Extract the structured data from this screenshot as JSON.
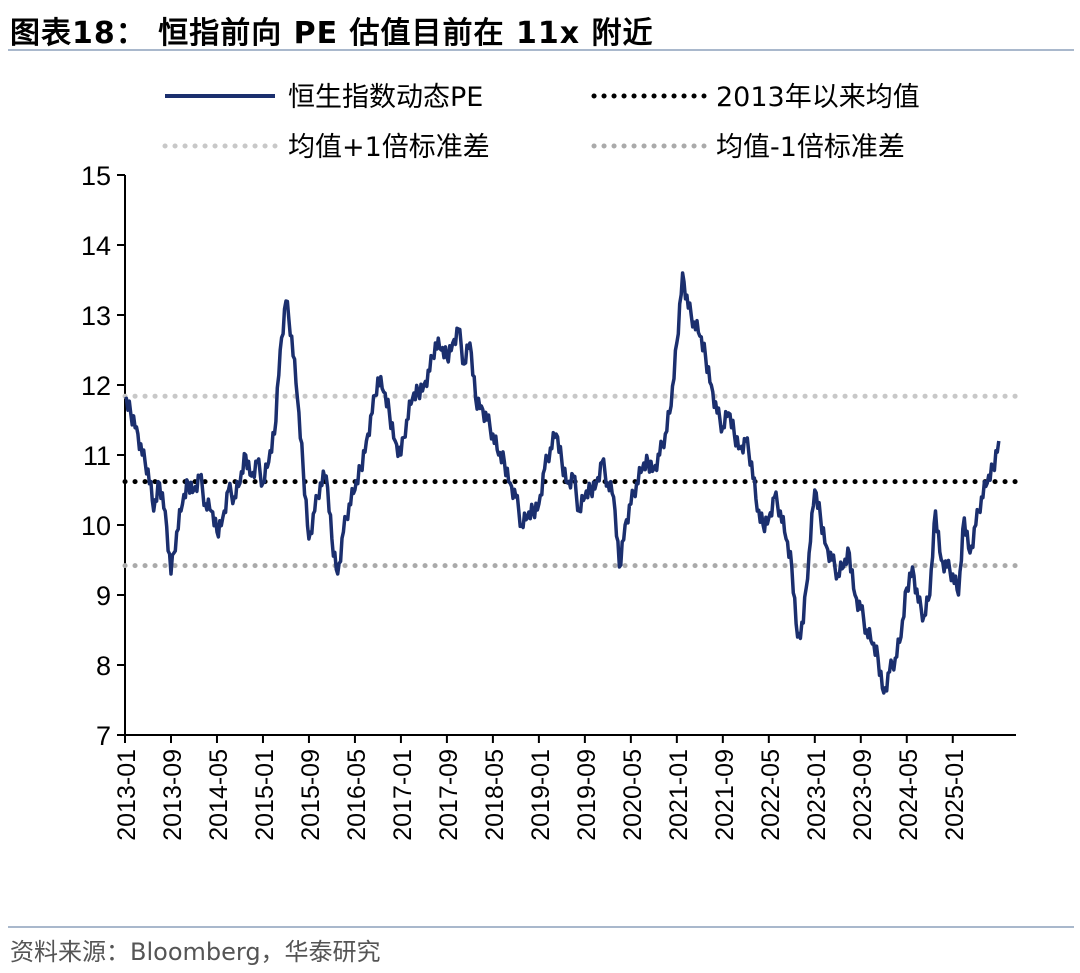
{
  "header": {
    "title": "图表18：  恒指前向 PE 估值目前在 11x 附近"
  },
  "footer": {
    "source": "资料来源：Bloomberg，华泰研究"
  },
  "colors": {
    "series": "#1b2f6e",
    "mean": "#000000",
    "band": "#b5b5b5",
    "rule": "#a9b8cc"
  },
  "chart_data": {
    "type": "line",
    "title": "",
    "xlabel": "",
    "ylabel": "",
    "ylim": [
      7,
      15
    ],
    "yticks": [
      7,
      8,
      9,
      10,
      11,
      12,
      13,
      14,
      15
    ],
    "xlim": [
      "2013-01",
      "2025-12"
    ],
    "xticks": [
      "2013-01",
      "2013-09",
      "2014-05",
      "2015-01",
      "2015-09",
      "2016-05",
      "2017-01",
      "2017-09",
      "2018-05",
      "2019-01",
      "2019-09",
      "2020-05",
      "2021-01",
      "2021-09",
      "2022-05",
      "2023-01",
      "2023-09",
      "2024-05",
      "2025-01"
    ],
    "grid": false,
    "legend_position": "top",
    "legend": [
      {
        "label": "恒生指数动态PE",
        "style": "solid",
        "color": "#1b2f6e"
      },
      {
        "label": "2013年以来均值",
        "style": "dotted",
        "color": "#000000"
      },
      {
        "label": "均值+1倍标准差",
        "style": "dotted",
        "color": "#c8c8c8"
      },
      {
        "label": "均值-1倍标准差",
        "style": "dotted",
        "color": "#aaaaaa"
      }
    ],
    "series": [
      {
        "name": "恒生指数动态PE",
        "x": [
          "2013-01",
          "2013-02",
          "2013-03",
          "2013-04",
          "2013-05",
          "2013-06",
          "2013-07",
          "2013-08",
          "2013-09",
          "2013-10",
          "2013-11",
          "2013-12",
          "2014-01",
          "2014-02",
          "2014-03",
          "2014-04",
          "2014-05",
          "2014-06",
          "2014-07",
          "2014-08",
          "2014-09",
          "2014-10",
          "2014-11",
          "2014-12",
          "2015-01",
          "2015-02",
          "2015-03",
          "2015-04",
          "2015-05",
          "2015-06",
          "2015-07",
          "2015-08",
          "2015-09",
          "2015-10",
          "2015-11",
          "2015-12",
          "2016-01",
          "2016-02",
          "2016-03",
          "2016-04",
          "2016-05",
          "2016-06",
          "2016-07",
          "2016-08",
          "2016-09",
          "2016-10",
          "2016-11",
          "2016-12",
          "2017-01",
          "2017-02",
          "2017-03",
          "2017-04",
          "2017-05",
          "2017-06",
          "2017-07",
          "2017-08",
          "2017-09",
          "2017-10",
          "2017-11",
          "2017-12",
          "2018-01",
          "2018-02",
          "2018-03",
          "2018-04",
          "2018-05",
          "2018-06",
          "2018-07",
          "2018-08",
          "2018-09",
          "2018-10",
          "2018-11",
          "2018-12",
          "2019-01",
          "2019-02",
          "2019-03",
          "2019-04",
          "2019-05",
          "2019-06",
          "2019-07",
          "2019-08",
          "2019-09",
          "2019-10",
          "2019-11",
          "2019-12",
          "2020-01",
          "2020-02",
          "2020-03",
          "2020-04",
          "2020-05",
          "2020-06",
          "2020-07",
          "2020-08",
          "2020-09",
          "2020-10",
          "2020-11",
          "2020-12",
          "2021-01",
          "2021-02",
          "2021-03",
          "2021-04",
          "2021-05",
          "2021-06",
          "2021-07",
          "2021-08",
          "2021-09",
          "2021-10",
          "2021-11",
          "2021-12",
          "2022-01",
          "2022-02",
          "2022-03",
          "2022-04",
          "2022-05",
          "2022-06",
          "2022-07",
          "2022-08",
          "2022-09",
          "2022-10",
          "2022-11",
          "2022-12",
          "2023-01",
          "2023-02",
          "2023-03",
          "2023-04",
          "2023-05",
          "2023-06",
          "2023-07",
          "2023-08",
          "2023-09",
          "2023-10",
          "2023-11",
          "2023-12",
          "2024-01",
          "2024-02",
          "2024-03",
          "2024-04",
          "2024-05",
          "2024-06",
          "2024-07",
          "2024-08",
          "2024-09",
          "2024-10",
          "2024-11",
          "2024-12",
          "2025-01",
          "2025-02",
          "2025-03",
          "2025-04",
          "2025-05",
          "2025-06",
          "2025-07",
          "2025-08",
          "2025-09"
        ],
        "values": [
          11.8,
          11.6,
          11.4,
          11.0,
          10.8,
          10.2,
          10.6,
          10.2,
          9.3,
          9.9,
          10.3,
          10.6,
          10.5,
          10.7,
          10.3,
          10.2,
          9.9,
          10.1,
          10.5,
          10.4,
          10.6,
          11.0,
          10.7,
          10.9,
          10.6,
          10.9,
          11.3,
          12.5,
          13.2,
          12.7,
          11.8,
          10.8,
          9.8,
          10.2,
          10.6,
          10.7,
          9.8,
          9.3,
          9.9,
          10.3,
          10.5,
          10.8,
          11.2,
          11.6,
          12.1,
          11.9,
          11.6,
          11.2,
          11.0,
          11.5,
          11.8,
          11.9,
          12.0,
          12.2,
          12.6,
          12.5,
          12.4,
          12.6,
          12.8,
          12.3,
          12.6,
          11.8,
          11.7,
          11.5,
          11.3,
          11.0,
          10.9,
          10.6,
          10.4,
          10.0,
          10.1,
          10.2,
          10.3,
          10.8,
          11.1,
          11.3,
          10.9,
          10.6,
          10.7,
          10.2,
          10.4,
          10.5,
          10.6,
          10.9,
          10.6,
          10.4,
          9.4,
          10.0,
          10.3,
          10.6,
          10.8,
          10.9,
          10.8,
          11.0,
          11.3,
          11.7,
          12.6,
          13.6,
          13.1,
          12.9,
          12.7,
          12.4,
          12.0,
          11.6,
          11.4,
          11.6,
          11.3,
          11.1,
          11.2,
          10.9,
          10.2,
          10.0,
          10.1,
          10.4,
          10.2,
          9.8,
          9.4,
          8.4,
          8.6,
          9.6,
          10.5,
          10.1,
          9.7,
          9.5,
          9.3,
          9.4,
          9.6,
          9.0,
          8.8,
          8.5,
          8.3,
          8.1,
          7.6,
          7.9,
          8.1,
          8.4,
          9.1,
          9.4,
          8.9,
          8.7,
          9.0,
          10.2,
          9.5,
          9.4,
          9.3,
          9.0,
          10.1,
          9.6,
          10.0,
          10.4,
          10.6,
          10.8,
          11.2
        ]
      }
    ],
    "reference_lines": [
      {
        "name": "2013年以来均值",
        "value": 10.62
      },
      {
        "name": "均值+1倍标准差",
        "value": 11.84
      },
      {
        "name": "均值-1倍标准差",
        "value": 9.42
      }
    ]
  }
}
